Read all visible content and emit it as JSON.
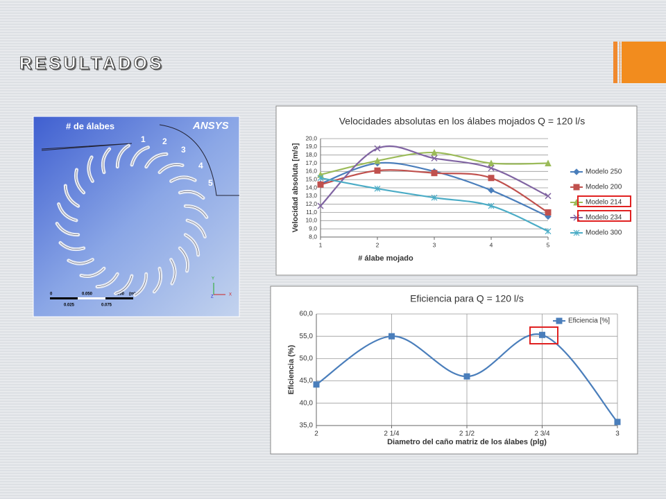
{
  "slide_title": "RESULTADOS",
  "image": {
    "label": "# de álabes",
    "brand": "ANSYS",
    "numbers": [
      "1",
      "2",
      "3",
      "4",
      "5"
    ],
    "scale": [
      "0",
      "0.050",
      "0.100",
      "(m)",
      "0.025",
      "0.075"
    ],
    "axes": [
      "Y",
      "X",
      "Z"
    ]
  },
  "chart_data": [
    {
      "type": "line",
      "title": "Velocidades absolutas en los álabes mojados Q = 120 l/s",
      "x_label": "# álabe mojado",
      "y_label": "Velocidad absoluta [m/s]",
      "categories": [
        "1",
        "2",
        "3",
        "4",
        "5"
      ],
      "ylim": [
        8,
        20
      ],
      "yticks": [
        {
          "value": 8,
          "label": "8,0"
        },
        {
          "value": 9,
          "label": "9,0"
        },
        {
          "value": 10,
          "label": "10,0"
        },
        {
          "value": 11,
          "label": "11,0"
        },
        {
          "value": 12,
          "label": "12,0"
        },
        {
          "value": 13,
          "label": "13,0"
        },
        {
          "value": 14,
          "label": "14,0"
        },
        {
          "value": 15,
          "label": "15,0"
        },
        {
          "value": 16,
          "label": "16,0"
        },
        {
          "value": 17,
          "label": "17,0"
        },
        {
          "value": 18,
          "label": "18,0"
        },
        {
          "value": 19,
          "label": "19,0"
        },
        {
          "value": 20,
          "label": "20,0"
        }
      ],
      "grid": "horizontal",
      "legend": "right",
      "smooth": true,
      "series": [
        {
          "name": "Modelo 250",
          "color": "#4a7ebb",
          "marker": "diamond",
          "values": [
            14.5,
            17.0,
            16.0,
            13.7,
            10.5
          ]
        },
        {
          "name": "Modelo 200",
          "color": "#c0504d",
          "marker": "square",
          "values": [
            14.4,
            16.1,
            15.8,
            15.2,
            11.0
          ]
        },
        {
          "name": "Modelo 214",
          "color": "#9bbb59",
          "marker": "triangle",
          "values": [
            15.6,
            17.3,
            18.3,
            17.0,
            17.0
          ]
        },
        {
          "name": "Modelo 234",
          "color": "#8064a2",
          "marker": "x",
          "values": [
            11.8,
            18.8,
            17.6,
            16.4,
            13.0
          ]
        },
        {
          "name": "Modelo 300",
          "color": "#4bacc6",
          "marker": "star",
          "values": [
            15.2,
            13.9,
            12.8,
            11.8,
            8.7
          ]
        }
      ]
    },
    {
      "type": "line",
      "title": "Eficiencia para Q = 120 l/s",
      "x_label": "Diametro del caño matriz de los álabes (plg)",
      "y_label": "Eficiencia (%)",
      "categories": [
        "2",
        "2 1/4",
        "2 1/2",
        "2 3/4",
        "3"
      ],
      "ylim": [
        35,
        60
      ],
      "yticks": [
        {
          "value": 35,
          "label": "35,0"
        },
        {
          "value": 40,
          "label": "40,0"
        },
        {
          "value": 45,
          "label": "45,0"
        },
        {
          "value": 50,
          "label": "50,0"
        },
        {
          "value": 55,
          "label": "55,0"
        },
        {
          "value": 60,
          "label": "60,0"
        }
      ],
      "grid": "both",
      "legend": "upper right",
      "smooth": true,
      "series": [
        {
          "name": "Eficiencia [%]",
          "color": "#4a7ebb",
          "marker": "square",
          "values": [
            44.2,
            55.0,
            46.0,
            55.3,
            35.8
          ]
        }
      ]
    }
  ]
}
